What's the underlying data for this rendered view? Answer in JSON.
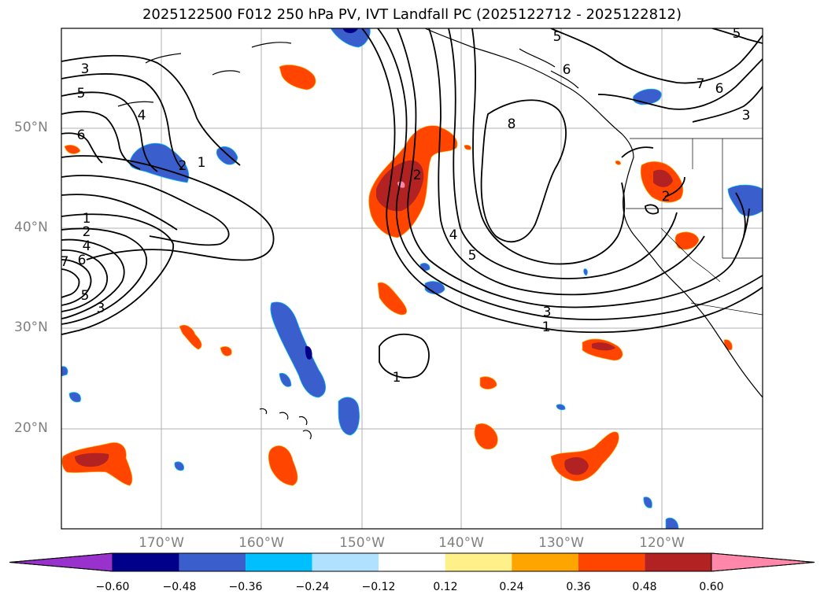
{
  "title": "2025122500 F012 250 hPa PV, IVT Landfall PC (2025122712 - 2025122812)",
  "lat_labels": [
    "50°N",
    "40°N",
    "30°N",
    "20°N"
  ],
  "lon_labels": [
    "170°W",
    "160°W",
    "150°W",
    "140°W",
    "130°W",
    "120°W"
  ],
  "contour_labels": {
    "west_3": "3",
    "west_5": "5",
    "west_6": "6",
    "west_4": "4",
    "west_2": "2",
    "west_1": "1",
    "left_1": "1",
    "left_2": "2",
    "left_4": "4",
    "left_6": "6",
    "left_7": "7",
    "left_5": "5",
    "left_3": "3",
    "c_2": "2",
    "c_4": "4",
    "c_5": "5",
    "c_8": "8",
    "s_3": "3",
    "s_1": "1",
    "s_1b": "1",
    "ne_5": "5",
    "ne_6": "6",
    "ne_7": "7",
    "ne_6b": "6",
    "ne_3": "3",
    "ne_5b": "5",
    "e_2": "2"
  },
  "colorbar": {
    "tick_labels": [
      "−0.60",
      "−0.48",
      "−0.36",
      "−0.24",
      "−0.12",
      "0.12",
      "0.24",
      "0.36",
      "0.48",
      "0.60"
    ],
    "colors": [
      "#9932cc",
      "#00008b",
      "#3a5fcd",
      "#00bfff",
      "#b0e2ff",
      "#ffffff",
      "#fff08a",
      "#ffa500",
      "#ff4500",
      "#b22222",
      "#ff88aa"
    ]
  }
}
